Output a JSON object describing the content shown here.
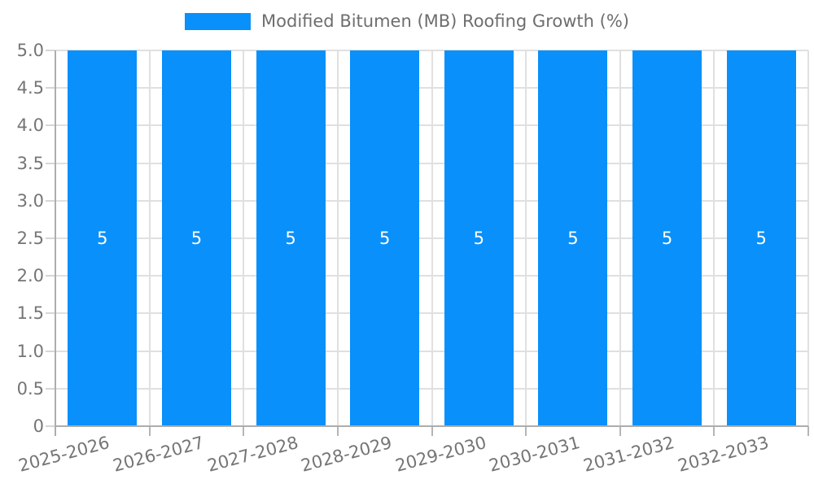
{
  "legend": {
    "label": "Modified Bitumen (MB) Roofing Growth (%)"
  },
  "chart_data": {
    "type": "bar",
    "title": "",
    "categories": [
      "2025-2026",
      "2026-2027",
      "2027-2028",
      "2028-2029",
      "2029-2030",
      "2030-2031",
      "2031-2032",
      "2032-2033"
    ],
    "series": [
      {
        "name": "Modified Bitumen (MB) Roofing Growth (%)",
        "values": [
          5,
          5,
          5,
          5,
          5,
          5,
          5,
          5
        ]
      }
    ],
    "bar_value_labels": [
      "5",
      "5",
      "5",
      "5",
      "5",
      "5",
      "5",
      "5"
    ],
    "xlabel": "",
    "ylabel": "",
    "ylim": [
      0,
      5
    ],
    "yticks": [
      {
        "v": 0.0,
        "label": "0"
      },
      {
        "v": 0.5,
        "label": "0.5"
      },
      {
        "v": 1.0,
        "label": "1.0"
      },
      {
        "v": 1.5,
        "label": "1.5"
      },
      {
        "v": 2.0,
        "label": "2.0"
      },
      {
        "v": 2.5,
        "label": "2.5"
      },
      {
        "v": 3.0,
        "label": "3.0"
      },
      {
        "v": 3.5,
        "label": "3.5"
      },
      {
        "v": 4.0,
        "label": "4.0"
      },
      {
        "v": 4.5,
        "label": "4.5"
      },
      {
        "v": 5.0,
        "label": "5.0"
      }
    ],
    "grid": true,
    "legend_position": "top-center",
    "x_label_rotation_deg": 15,
    "colors": {
      "bar": "#0990fa",
      "grid": "#e0e0e0",
      "axis": "#adadad",
      "tick_y": "#d6d6d6",
      "tick_x": "#b5b5b5",
      "text": "#757575",
      "legend_text": "#6e6e6e",
      "bar_label": "#ffffff",
      "background": "#ffffff"
    }
  }
}
